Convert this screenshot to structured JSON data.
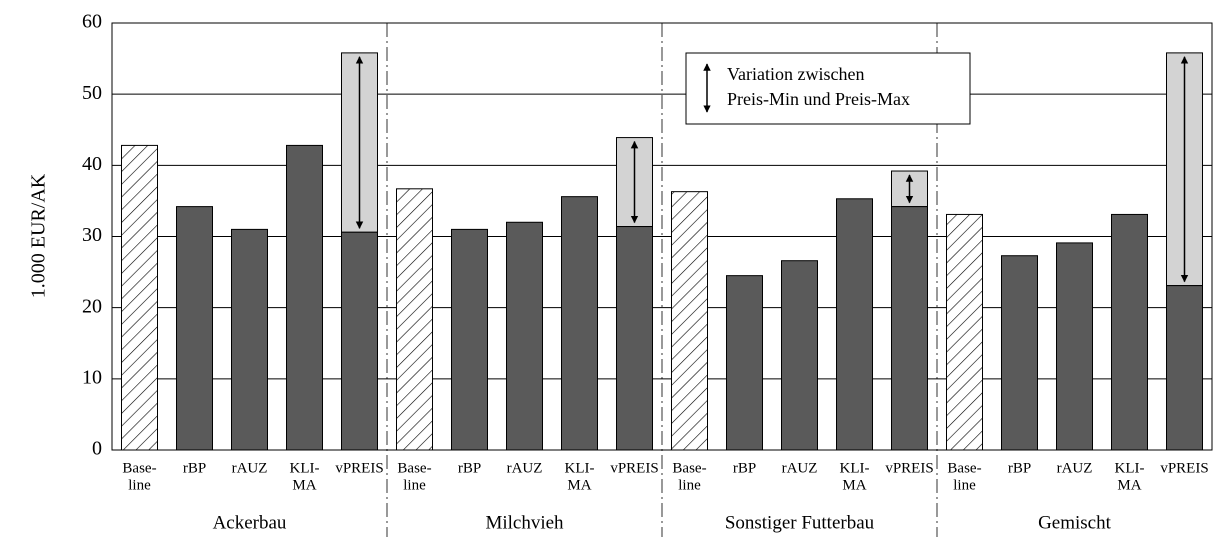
{
  "chart_data": {
    "type": "bar",
    "y_label": "1.000 EUR/AK",
    "categories": [
      [
        "Base-",
        "line"
      ],
      "rBP",
      "rAUZ",
      [
        "KLI-",
        "MA"
      ],
      "vPREIS"
    ],
    "groups": [
      {
        "name": "Ackerbau",
        "values": [
          42.8,
          34.2,
          31.0,
          42.8,
          30.6
        ],
        "range_max": 55.8
      },
      {
        "name": "Milchvieh",
        "values": [
          36.7,
          31.0,
          32.0,
          35.6,
          31.4
        ],
        "range_max": 43.9
      },
      {
        "name": "Sonstiger Futterbau",
        "values": [
          36.3,
          24.5,
          26.6,
          35.3,
          34.2
        ],
        "range_max": 39.2
      },
      {
        "name": "Gemischt",
        "values": [
          33.1,
          27.3,
          29.1,
          33.1,
          23.1
        ],
        "range_max": 55.8
      }
    ],
    "legend": [
      "Variation zwischen",
      "Preis-Min und Preis-Max"
    ],
    "color": "#5a5a5a",
    "range_color": "#d3d3d3",
    "ylim": [
      0,
      60
    ],
    "yticks": [
      0,
      10,
      20,
      30,
      40,
      50,
      60
    ],
    "grid": true
  }
}
